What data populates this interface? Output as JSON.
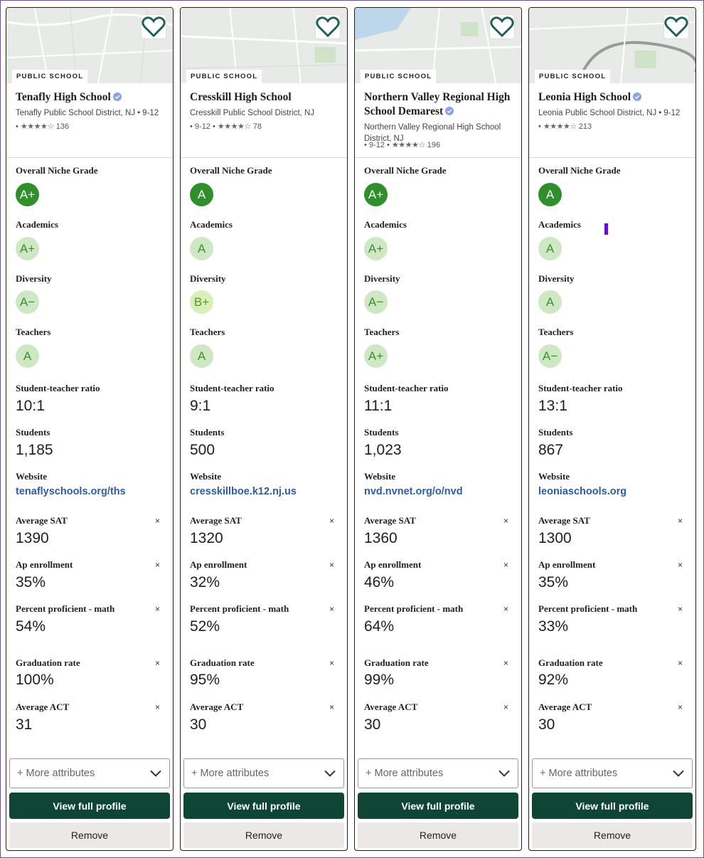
{
  "labels": {
    "school_type": "PUBLIC SCHOOL",
    "overall": "Overall Niche Grade",
    "academics": "Academics",
    "diversity": "Diversity",
    "teachers": "Teachers",
    "ratio": "Student-teacher ratio",
    "students": "Students",
    "website": "Website",
    "sat": "Average SAT",
    "ap": "Ap enrollment",
    "math": "Percent proficient - math",
    "grad": "Graduation rate",
    "act": "Average ACT",
    "more_attributes": "+ More attributes",
    "view_profile": "View full profile",
    "remove": "Remove",
    "remove_x": "×"
  },
  "colors": {
    "primary_button": "#0f4535",
    "grade_dark": "#2f8f2b",
    "grade_light": "#cfe8c4",
    "link": "#2b5da8"
  },
  "schools": [
    {
      "name": "Tenafly High School",
      "verified": true,
      "district": "Tenafly Public School District, NJ",
      "grades": "9-12",
      "stars": "★★★★☆",
      "reviews": "136",
      "overall": "A+",
      "academics": "A+",
      "diversity": "A−",
      "teachers": "A",
      "ratio": "10:1",
      "students": "1,185",
      "website": "tenaflyschools.org/ths",
      "sat": "1390",
      "ap": "35%",
      "math": "54%",
      "grad": "100%",
      "act": "31"
    },
    {
      "name": "Cresskill High School",
      "verified": false,
      "district": "Cresskill Public School District, NJ",
      "grades": "9-12",
      "stars": "★★★★☆",
      "reviews": "78",
      "overall": "A",
      "academics": "A",
      "diversity": "B+",
      "teachers": "A",
      "ratio": "9:1",
      "students": "500",
      "website": "cresskillboe.k12.nj.us",
      "sat": "1320",
      "ap": "32%",
      "math": "52%",
      "grad": "95%",
      "act": "30"
    },
    {
      "name": "Northern Valley Regional High School Demarest",
      "verified": true,
      "district": "Northern Valley Regional High School District, NJ",
      "grades": "9-12",
      "stars": "★★★★☆",
      "reviews": "196",
      "overall": "A+",
      "academics": "A+",
      "diversity": "A−",
      "teachers": "A+",
      "ratio": "11:1",
      "students": "1,023",
      "website": "nvd.nvnet.org/o/nvd",
      "sat": "1360",
      "ap": "46%",
      "math": "64%",
      "grad": "99%",
      "act": "30"
    },
    {
      "name": "Leonia High School",
      "verified": true,
      "district": "Leonia Public School District, NJ",
      "grades": "9-12",
      "stars": "★★★★☆",
      "reviews": "213",
      "overall": "A",
      "academics": "A",
      "diversity": "A",
      "teachers": "A−",
      "ratio": "13:1",
      "students": "867",
      "website": "leoniaschools.org",
      "sat": "1300",
      "ap": "35%",
      "math": "33%",
      "grad": "92%",
      "act": "30"
    }
  ]
}
